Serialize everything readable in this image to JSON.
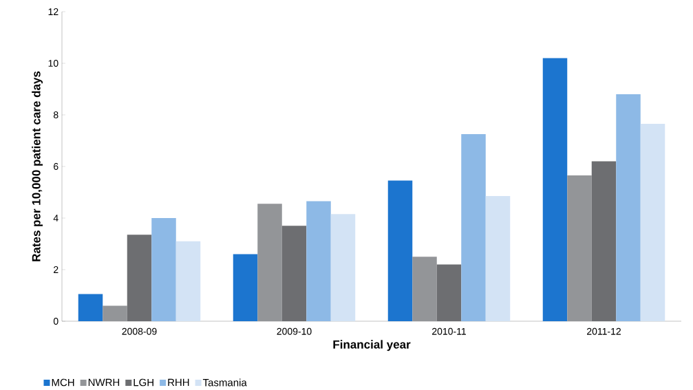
{
  "chart_data": {
    "type": "bar",
    "xlabel": "Financial year",
    "ylabel": "Rates per 10,000 patient care days",
    "categories": [
      "2008-09",
      "2009-10",
      "2010-11",
      "2011-12"
    ],
    "series": [
      {
        "name": "MCH",
        "color": "#1c75cf",
        "values": [
          1.05,
          2.6,
          5.45,
          10.2
        ]
      },
      {
        "name": "NWRH",
        "color": "#939598",
        "values": [
          0.6,
          4.55,
          2.5,
          5.65
        ]
      },
      {
        "name": "LGH",
        "color": "#6d6e71",
        "values": [
          3.35,
          3.7,
          2.2,
          6.2
        ]
      },
      {
        "name": "RHH",
        "color": "#8db9e6",
        "values": [
          4.0,
          4.65,
          7.25,
          8.8
        ]
      },
      {
        "name": "Tasmania",
        "color": "#d3e3f5",
        "values": [
          3.1,
          4.15,
          4.85,
          7.65
        ]
      }
    ],
    "ylim": [
      0,
      12
    ],
    "yticks": [
      0,
      2,
      4,
      6,
      8,
      10,
      12
    ],
    "grid": false,
    "legend": "bottom"
  }
}
